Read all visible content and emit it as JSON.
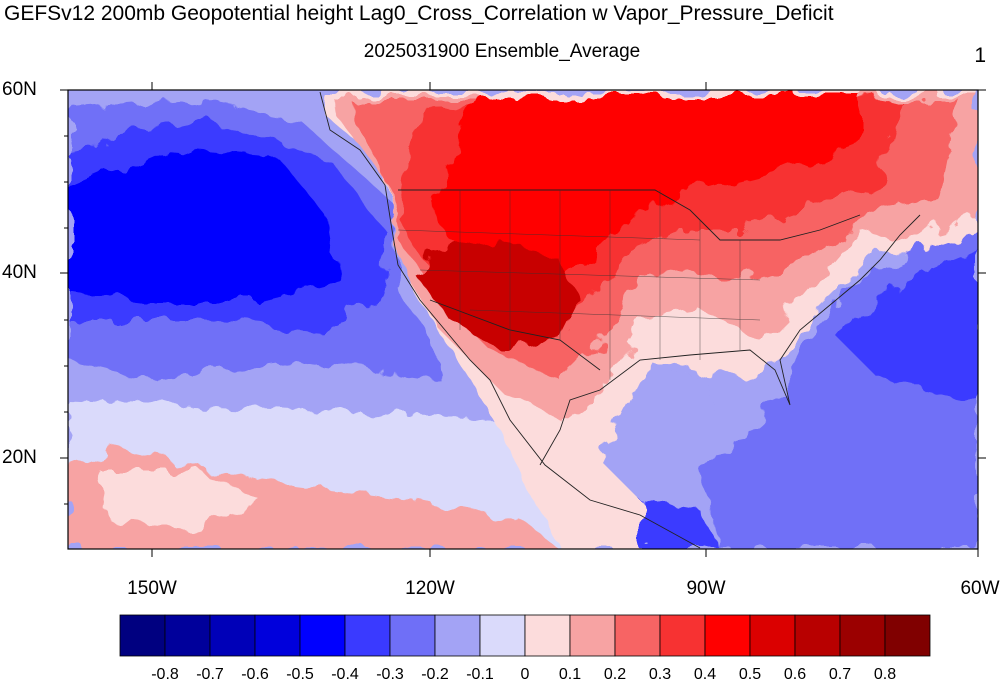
{
  "header": {
    "title": "GEFSv12 200mb Geopotential height Lag0_Cross_Correlation w Vapor_Pressure_Deficit",
    "subtitle": "2025031900 Ensemble_Average",
    "corner_label": "1"
  },
  "map": {
    "lat_labels": [
      "60N",
      "40N",
      "20N"
    ],
    "lon_labels": [
      "150W",
      "120W",
      "90W",
      "60W"
    ],
    "extent": {
      "lon_min": -160,
      "lon_max": -60,
      "lat_min": 10,
      "lat_max": 60
    },
    "colors": {
      "ocean_deep_blue": "#0000ff",
      "blue": "#3a3aff",
      "mid_blue": "#6f6ff7",
      "light_blue": "#a3a3f5",
      "pale_blue": "#dadafb",
      "pale_pink": "#fcdcdc",
      "light_red": "#f7a3a3",
      "mid_red": "#f76464",
      "red": "#f73232",
      "bright_red": "#ff0000",
      "dark_red": "#c80000"
    }
  },
  "colorbar": {
    "labels": [
      "-0.8",
      "-0.7",
      "-0.6",
      "-0.5",
      "-0.4",
      "-0.3",
      "-0.2",
      "-0.1",
      "0",
      "0.1",
      "0.2",
      "0.3",
      "0.4",
      "0.5",
      "0.6",
      "0.7",
      "0.8"
    ],
    "colors": [
      "#000080",
      "#00009b",
      "#0000b8",
      "#0000dc",
      "#0000ff",
      "#3a3aff",
      "#6f6ff7",
      "#a3a3f5",
      "#dadafb",
      "#fcdcdc",
      "#f7a3a3",
      "#f76464",
      "#f73232",
      "#ff0000",
      "#db0000",
      "#b80000",
      "#9b0000",
      "#800000"
    ]
  }
}
